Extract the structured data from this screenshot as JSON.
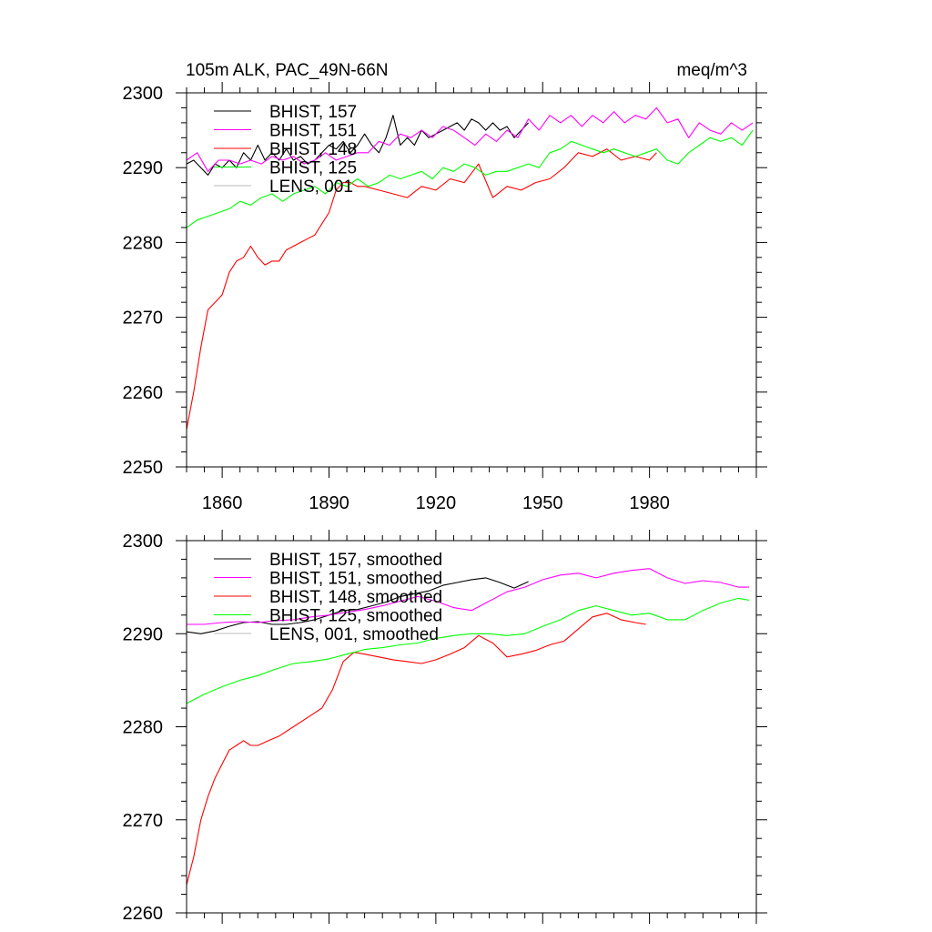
{
  "chart_data": [
    {
      "type": "line",
      "title": "105m ALK, PAC_49N-66N",
      "units_label": "meq/m^3",
      "xlim": [
        1850,
        2010
      ],
      "ylim": [
        2250,
        2300
      ],
      "x_ticks": [
        1860,
        1890,
        1920,
        1950,
        1980
      ],
      "x_tick_labels": [
        "1860",
        "1890",
        "1920",
        "1950",
        "1980"
      ],
      "y_ticks": [
        2250,
        2260,
        2270,
        2280,
        2290,
        2300
      ],
      "y_tick_labels": [
        "2250",
        "2260",
        "2270",
        "2280",
        "2290",
        "2300"
      ],
      "grid": false,
      "legend_position": "top-left",
      "series": [
        {
          "name": "BHIST, 157",
          "color": "#000000",
          "x": [
            1850,
            1852,
            1854,
            1856,
            1858,
            1860,
            1862,
            1864,
            1866,
            1868,
            1870,
            1872,
            1874,
            1876,
            1878,
            1880,
            1882,
            1884,
            1886,
            1888,
            1890,
            1892,
            1894,
            1896,
            1898,
            1900,
            1902,
            1904,
            1906,
            1908,
            1910,
            1912,
            1914,
            1916,
            1918,
            1920,
            1922,
            1924,
            1926,
            1928,
            1930,
            1932,
            1934,
            1936,
            1938,
            1940,
            1942,
            1944,
            1946
          ],
          "y": [
            2290.5,
            2291,
            2290,
            2289,
            2290.5,
            2290,
            2291,
            2290,
            2292,
            2291,
            2293,
            2291,
            2292,
            2291,
            2292.5,
            2291,
            2291.5,
            2290.5,
            2291,
            2292,
            2293,
            2292.5,
            2293.5,
            2292,
            2293,
            2294.5,
            2293,
            2292,
            2294,
            2297,
            2293,
            2294,
            2293,
            2295,
            2294,
            2294.5,
            2295,
            2295.5,
            2296,
            2295,
            2296.5,
            2296,
            2295,
            2296,
            2295,
            2295.5,
            2294,
            2295,
            2296
          ]
        },
        {
          "name": "BHIST, 151",
          "color": "#ff00ff",
          "x": [
            1850,
            1853,
            1856,
            1859,
            1862,
            1865,
            1868,
            1871,
            1874,
            1877,
            1880,
            1883,
            1886,
            1889,
            1892,
            1895,
            1898,
            1901,
            1904,
            1907,
            1910,
            1913,
            1916,
            1919,
            1922,
            1925,
            1928,
            1931,
            1934,
            1937,
            1940,
            1943,
            1946,
            1949,
            1952,
            1955,
            1958,
            1961,
            1964,
            1967,
            1970,
            1973,
            1976,
            1979,
            1982,
            1985,
            1988,
            1991,
            1994,
            1997,
            2000,
            2003,
            2006,
            2009
          ],
          "y": [
            2291,
            2292,
            2289.5,
            2291,
            2291,
            2290.5,
            2291,
            2290.5,
            2291.5,
            2291,
            2291.5,
            2290.5,
            2291,
            2292,
            2291,
            2291.5,
            2292,
            2292,
            2293.5,
            2293,
            2294.5,
            2294,
            2295,
            2294,
            2295.5,
            2295,
            2294,
            2293,
            2294.5,
            2293.5,
            2295,
            2294,
            2296.5,
            2295,
            2297,
            2296,
            2297,
            2295.5,
            2297,
            2296,
            2297.5,
            2296,
            2297,
            2296.5,
            2298,
            2296,
            2296.5,
            2294,
            2296,
            2295,
            2294.5,
            2296,
            2295,
            2296
          ]
        },
        {
          "name": "BHIST, 148",
          "color": "#ff0000",
          "x": [
            1850,
            1852,
            1854,
            1856,
            1858,
            1860,
            1862,
            1864,
            1866,
            1868,
            1870,
            1872,
            1874,
            1876,
            1878,
            1880,
            1882,
            1884,
            1886,
            1888,
            1890,
            1892,
            1894,
            1896,
            1898,
            1900,
            1904,
            1908,
            1912,
            1916,
            1920,
            1924,
            1928,
            1932,
            1936,
            1940,
            1944,
            1948,
            1952,
            1956,
            1960,
            1964,
            1968,
            1972,
            1976,
            1980,
            1982
          ],
          "y": [
            2255,
            2260,
            2266,
            2271,
            2272,
            2273,
            2276,
            2277.5,
            2278,
            2279.5,
            2278,
            2277,
            2277.5,
            2277.5,
            2279,
            2279.5,
            2280,
            2280.5,
            2281,
            2282.5,
            2284,
            2287,
            2288,
            2288,
            2287.5,
            2287.5,
            2287,
            2286.5,
            2286,
            2287.5,
            2287,
            2288.5,
            2288,
            2290.5,
            2286,
            2287.5,
            2287,
            2288,
            2288.5,
            2290,
            2292,
            2291.5,
            2292.5,
            2291,
            2291.5,
            2291,
            2292
          ]
        },
        {
          "name": "BHIST, 125",
          "color": "#00ff00",
          "x": [
            1850,
            1853,
            1856,
            1859,
            1862,
            1865,
            1868,
            1871,
            1874,
            1877,
            1880,
            1883,
            1886,
            1889,
            1892,
            1895,
            1898,
            1901,
            1904,
            1907,
            1910,
            1913,
            1916,
            1919,
            1922,
            1925,
            1928,
            1931,
            1934,
            1937,
            1940,
            1943,
            1946,
            1949,
            1952,
            1955,
            1958,
            1961,
            1964,
            1967,
            1970,
            1973,
            1976,
            1979,
            1982,
            1985,
            1988,
            1991,
            1994,
            1997,
            2000,
            2003,
            2006,
            2009
          ],
          "y": [
            2282,
            2283,
            2283.5,
            2284,
            2284.5,
            2285.5,
            2285,
            2286,
            2286.5,
            2285.5,
            2286.5,
            2287,
            2287.5,
            2286.5,
            2288,
            2287.5,
            2288.5,
            2287.5,
            2288,
            2289,
            2288.5,
            2289,
            2289.5,
            2288.5,
            2290,
            2289.5,
            2290.5,
            2290,
            2289,
            2289.5,
            2289.5,
            2290,
            2290.5,
            2290,
            2292,
            2292.5,
            2293.5,
            2293,
            2292.5,
            2292,
            2292.5,
            2292,
            2291.5,
            2292,
            2292.5,
            2291,
            2290.5,
            2292,
            2293,
            2294,
            2293.5,
            2294,
            2293,
            2295
          ]
        },
        {
          "name": "LENS, 001",
          "color": "#bbbbbb",
          "x": [],
          "y": []
        }
      ]
    },
    {
      "type": "line",
      "title": "",
      "xlim": [
        1850,
        2010
      ],
      "ylim": [
        2260,
        2300
      ],
      "x_ticks": [
        1860,
        1890,
        1920,
        1950,
        1980
      ],
      "x_tick_labels": [],
      "y_ticks": [
        2260,
        2270,
        2280,
        2290,
        2300
      ],
      "y_tick_labels": [
        "2260",
        "2270",
        "2280",
        "2290",
        "2300"
      ],
      "grid": false,
      "legend_position": "top-left",
      "series": [
        {
          "name": "BHIST, 157, smoothed",
          "color": "#000000",
          "x": [
            1850,
            1854,
            1858,
            1862,
            1866,
            1870,
            1874,
            1878,
            1882,
            1886,
            1890,
            1894,
            1898,
            1902,
            1906,
            1910,
            1914,
            1918,
            1922,
            1926,
            1930,
            1934,
            1938,
            1942,
            1946
          ],
          "y": [
            2290.2,
            2290,
            2290.3,
            2290.8,
            2291.2,
            2291.3,
            2291,
            2291,
            2291.2,
            2291.5,
            2292,
            2292.5,
            2292.6,
            2293,
            2293.4,
            2294,
            2294.3,
            2294.6,
            2295.2,
            2295.5,
            2295.8,
            2296,
            2295.5,
            2294.9,
            2295.6
          ]
        },
        {
          "name": "BHIST, 151, smoothed",
          "color": "#ff00ff",
          "x": [
            1850,
            1855,
            1860,
            1865,
            1870,
            1875,
            1880,
            1885,
            1890,
            1895,
            1900,
            1905,
            1910,
            1915,
            1920,
            1925,
            1930,
            1935,
            1940,
            1945,
            1950,
            1955,
            1960,
            1965,
            1970,
            1975,
            1980,
            1985,
            1990,
            1995,
            2000,
            2005,
            2008
          ],
          "y": [
            2291,
            2291,
            2291.2,
            2291.3,
            2291.2,
            2291.4,
            2291.5,
            2291.8,
            2292,
            2292.3,
            2292.6,
            2293,
            2293.5,
            2294,
            2293.5,
            2292.8,
            2292.5,
            2293.5,
            2294.5,
            2295,
            2295.8,
            2296.3,
            2296.5,
            2296,
            2296.5,
            2296.8,
            2297,
            2296,
            2295.4,
            2295.7,
            2295.5,
            2295,
            2295
          ]
        },
        {
          "name": "BHIST, 148, smoothed",
          "color": "#ff0000",
          "x": [
            1850,
            1852,
            1854,
            1856,
            1858,
            1860,
            1862,
            1864,
            1866,
            1868,
            1870,
            1873,
            1876,
            1880,
            1884,
            1888,
            1891,
            1894,
            1897,
            1900,
            1904,
            1908,
            1912,
            1916,
            1920,
            1924,
            1928,
            1932,
            1936,
            1940,
            1944,
            1948,
            1952,
            1956,
            1960,
            1964,
            1968,
            1972,
            1976,
            1979
          ],
          "y": [
            2263,
            2266,
            2270,
            2272.5,
            2274.5,
            2276,
            2277.5,
            2278,
            2278.5,
            2278,
            2278,
            2278.5,
            2279,
            2280,
            2281,
            2282,
            2284,
            2287,
            2288,
            2287.8,
            2287.5,
            2287.2,
            2287,
            2286.8,
            2287.2,
            2287.8,
            2288.5,
            2289.8,
            2289,
            2287.5,
            2287.8,
            2288.2,
            2288.8,
            2289.2,
            2290.5,
            2291.8,
            2292.2,
            2291.5,
            2291.2,
            2291
          ]
        },
        {
          "name": "BHIST, 125, smoothed",
          "color": "#00ff00",
          "x": [
            1850,
            1855,
            1860,
            1865,
            1870,
            1875,
            1880,
            1885,
            1890,
            1895,
            1900,
            1905,
            1910,
            1915,
            1920,
            1925,
            1930,
            1935,
            1940,
            1945,
            1950,
            1955,
            1960,
            1965,
            1970,
            1975,
            1980,
            1985,
            1990,
            1995,
            2000,
            2005,
            2008
          ],
          "y": [
            2282.5,
            2283.5,
            2284.3,
            2285,
            2285.5,
            2286.2,
            2286.8,
            2287,
            2287.3,
            2287.8,
            2288.3,
            2288.5,
            2288.8,
            2289,
            2289.5,
            2289.8,
            2290,
            2290,
            2289.8,
            2290,
            2290.8,
            2291.5,
            2292.5,
            2293,
            2292.5,
            2292,
            2292.2,
            2291.5,
            2291.5,
            2292.5,
            2293.3,
            2293.8,
            2293.6
          ]
        },
        {
          "name": "LENS, 001, smoothed",
          "color": "#bbbbbb",
          "x": [],
          "y": []
        }
      ]
    }
  ]
}
